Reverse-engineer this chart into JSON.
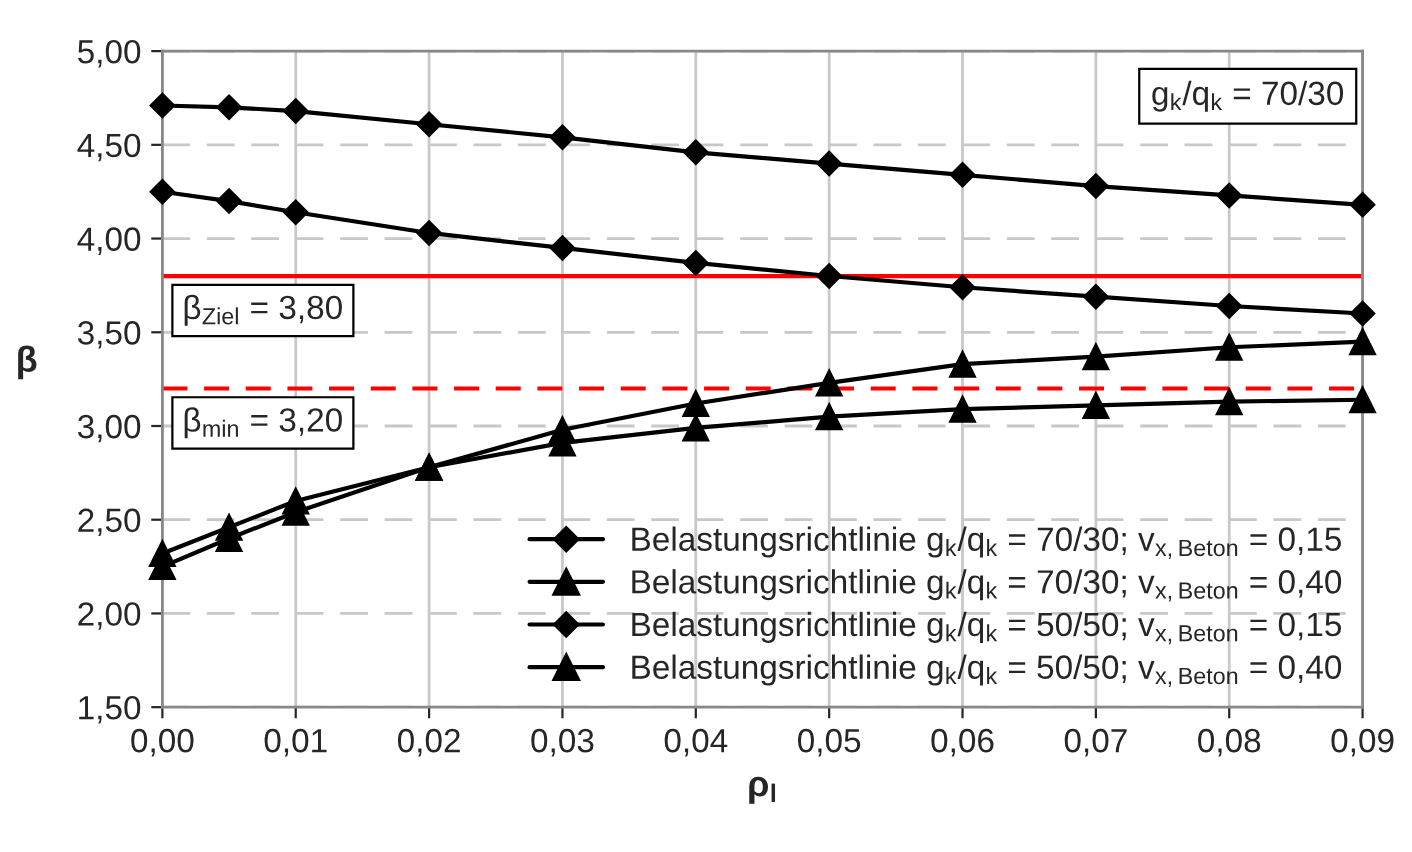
{
  "chart_data": {
    "type": "line",
    "xlabel": "ρ$_{l}$",
    "ylabel": "β",
    "x": [
      0,
      0.005,
      0.01,
      0.02,
      0.03,
      0.04,
      0.05,
      0.06,
      0.07,
      0.08,
      0.09
    ],
    "series": [
      {
        "name": "Belastungsrichtlinie g$_{k}$/q$_{k}$ = 70/30; v$_{x,Beton}$ = 0,15",
        "color": "#000000",
        "marker": "diamond",
        "values": [
          4.71,
          4.7,
          4.68,
          4.61,
          4.54,
          4.46,
          4.4,
          4.34,
          4.28,
          4.23,
          4.18
        ]
      },
      {
        "name": "Belastungsrichtlinie g$_{k}$/q$_{k}$ = 70/30; v$_{x,Beton}$ = 0,40",
        "color": "#000000",
        "marker": "triangle",
        "values": [
          2.25,
          2.4,
          2.54,
          2.78,
          2.98,
          3.12,
          3.23,
          3.33,
          3.37,
          3.42,
          3.45
        ]
      },
      {
        "name": "Belastungsrichtlinie g$_{k}$/q$_{k}$ = 50/50; v$_{x,Beton}$ = 0,15",
        "color": "#000000",
        "marker": "diamond",
        "values": [
          4.25,
          4.2,
          4.14,
          4.03,
          3.95,
          3.87,
          3.8,
          3.74,
          3.69,
          3.64,
          3.6
        ]
      },
      {
        "name": "Belastungsrichtlinie g$_{k}$/q$_{k}$ = 50/50; v$_{x,Beton}$ = 0,40",
        "color": "#000000",
        "marker": "triangle",
        "values": [
          2.32,
          2.46,
          2.6,
          2.78,
          2.91,
          2.99,
          3.05,
          3.09,
          3.11,
          3.13,
          3.14
        ]
      }
    ],
    "xlim": [
      0,
      0.09
    ],
    "xticks": [
      {
        "value": 0,
        "label": "0,00"
      },
      {
        "value": 0.01,
        "label": "0,01"
      },
      {
        "value": 0.02,
        "label": "0,02"
      },
      {
        "value": 0.03,
        "label": "0,03"
      },
      {
        "value": 0.04,
        "label": "0,04"
      },
      {
        "value": 0.05,
        "label": "0,05"
      },
      {
        "value": 0.06,
        "label": "0,06"
      },
      {
        "value": 0.07,
        "label": "0,07"
      },
      {
        "value": 0.08,
        "label": "0,08"
      },
      {
        "value": 0.09,
        "label": "0,09"
      }
    ],
    "ylim": [
      1.5,
      5.0
    ],
    "yticks": [
      {
        "value": 1.5,
        "label": "1,50"
      },
      {
        "value": 2.0,
        "label": "2,00"
      },
      {
        "value": 2.5,
        "label": "2,50"
      },
      {
        "value": 3.0,
        "label": "3,00"
      },
      {
        "value": 3.5,
        "label": "3,50"
      },
      {
        "value": 4.0,
        "label": "4,00"
      },
      {
        "value": 4.5,
        "label": "4,50"
      },
      {
        "value": 5.0,
        "label": "5,00"
      }
    ],
    "ref_lines": [
      {
        "axis": "y",
        "value": 3.8,
        "label": "β$_{Ziel}$ = 3,80",
        "color": "#ff0000",
        "line_style": "solid"
      },
      {
        "axis": "y",
        "value": 3.2,
        "label": "β$_{min}$ = 3,20",
        "color": "#ff0000",
        "line_style": "dashed"
      }
    ],
    "annotations": [
      "g$_{k}$/q$_{k}$ = 70/30"
    ],
    "grid": true,
    "legend": "bottom right",
    "line_style": "solid"
  }
}
